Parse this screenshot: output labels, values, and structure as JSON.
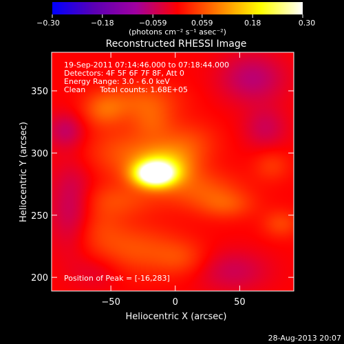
{
  "chart_data": {
    "type": "heatmap",
    "title": "Reconstructed RHESSI Image",
    "xlabel": "Heliocentric X (arcsec)",
    "ylabel": "Heliocentric Y (arcsec)",
    "xlim": [
      -96,
      92
    ],
    "ylim": [
      189,
      381
    ],
    "x_ticks": [
      -50,
      0,
      50
    ],
    "x_tick_labels": [
      "−50",
      "0",
      "50"
    ],
    "y_ticks": [
      200,
      250,
      300,
      350
    ],
    "y_tick_labels": [
      "200",
      "250",
      "300",
      "350"
    ],
    "colorbar": {
      "min": -0.3,
      "max": 0.3,
      "ticks": [
        -0.3,
        -0.18,
        -0.059,
        0.059,
        0.18,
        0.3
      ],
      "tick_labels": [
        "−0.30",
        "−0.18",
        "−0.059",
        "0.059",
        "0.18",
        "0.30"
      ],
      "units": "(photons cm⁻² s⁻¹ asec⁻²)",
      "colors": [
        "#0000ff",
        "#5a00b4",
        "#a000a0",
        "#ff0000",
        "#ff8000",
        "#ffff00",
        "#ffffff"
      ]
    },
    "annotations": [
      "19-Sep-2011 07:14:46.000 to 07:18:44.000",
      "Detectors: 4F 5F 6F 7F 8F, Att 0",
      "Energy Range: 3.0 - 6.0 keV",
      "Clean      Total counts: 1.68E+05"
    ],
    "peak_label": "Position of Peak = [-16,283]",
    "peak": [
      -16,
      283
    ],
    "background_value": 0.0,
    "sources": [
      {
        "x": -16,
        "y": 283,
        "sx": 11,
        "sy": 7,
        "amp": 0.34
      },
      {
        "x": -8,
        "y": 290,
        "sx": 16,
        "sy": 11,
        "amp": 0.13
      },
      {
        "x": -38,
        "y": 300,
        "sx": 22,
        "sy": 14,
        "amp": 0.06
      },
      {
        "x": -55,
        "y": 335,
        "sx": 12,
        "sy": 10,
        "amp": 0.07
      },
      {
        "x": -25,
        "y": 342,
        "sx": 20,
        "sy": 10,
        "amp": 0.06
      },
      {
        "x": -18,
        "y": 325,
        "sx": 12,
        "sy": 10,
        "amp": 0.05
      },
      {
        "x": 10,
        "y": 308,
        "sx": 16,
        "sy": 12,
        "amp": 0.05
      },
      {
        "x": 20,
        "y": 270,
        "sx": 22,
        "sy": 11,
        "amp": 0.06
      },
      {
        "x": 40,
        "y": 258,
        "sx": 15,
        "sy": 8,
        "amp": 0.05
      },
      {
        "x": -45,
        "y": 262,
        "sx": 22,
        "sy": 10,
        "amp": 0.05
      },
      {
        "x": -62,
        "y": 240,
        "sx": 16,
        "sy": 13,
        "amp": 0.04
      },
      {
        "x": -30,
        "y": 222,
        "sx": 25,
        "sy": 14,
        "amp": 0.06
      },
      {
        "x": 5,
        "y": 215,
        "sx": 14,
        "sy": 10,
        "amp": 0.04
      },
      {
        "x": 75,
        "y": 290,
        "sx": 10,
        "sy": 9,
        "amp": 0.04
      },
      {
        "x": 82,
        "y": 243,
        "sx": 10,
        "sy": 8,
        "amp": 0.05
      },
      {
        "x": 60,
        "y": 360,
        "sx": 18,
        "sy": 14,
        "amp": -0.07
      },
      {
        "x": -80,
        "y": 255,
        "sx": 12,
        "sy": 25,
        "amp": -0.07
      },
      {
        "x": -85,
        "y": 318,
        "sx": 10,
        "sy": 10,
        "amp": -0.06
      },
      {
        "x": 45,
        "y": 205,
        "sx": 20,
        "sy": 12,
        "amp": -0.05
      },
      {
        "x": 70,
        "y": 320,
        "sx": 12,
        "sy": 12,
        "amp": -0.05
      },
      {
        "x": -60,
        "y": 205,
        "sx": 14,
        "sy": 10,
        "amp": -0.03
      }
    ]
  },
  "footer": {
    "timestamp": "28-Aug-2013 20:07"
  }
}
